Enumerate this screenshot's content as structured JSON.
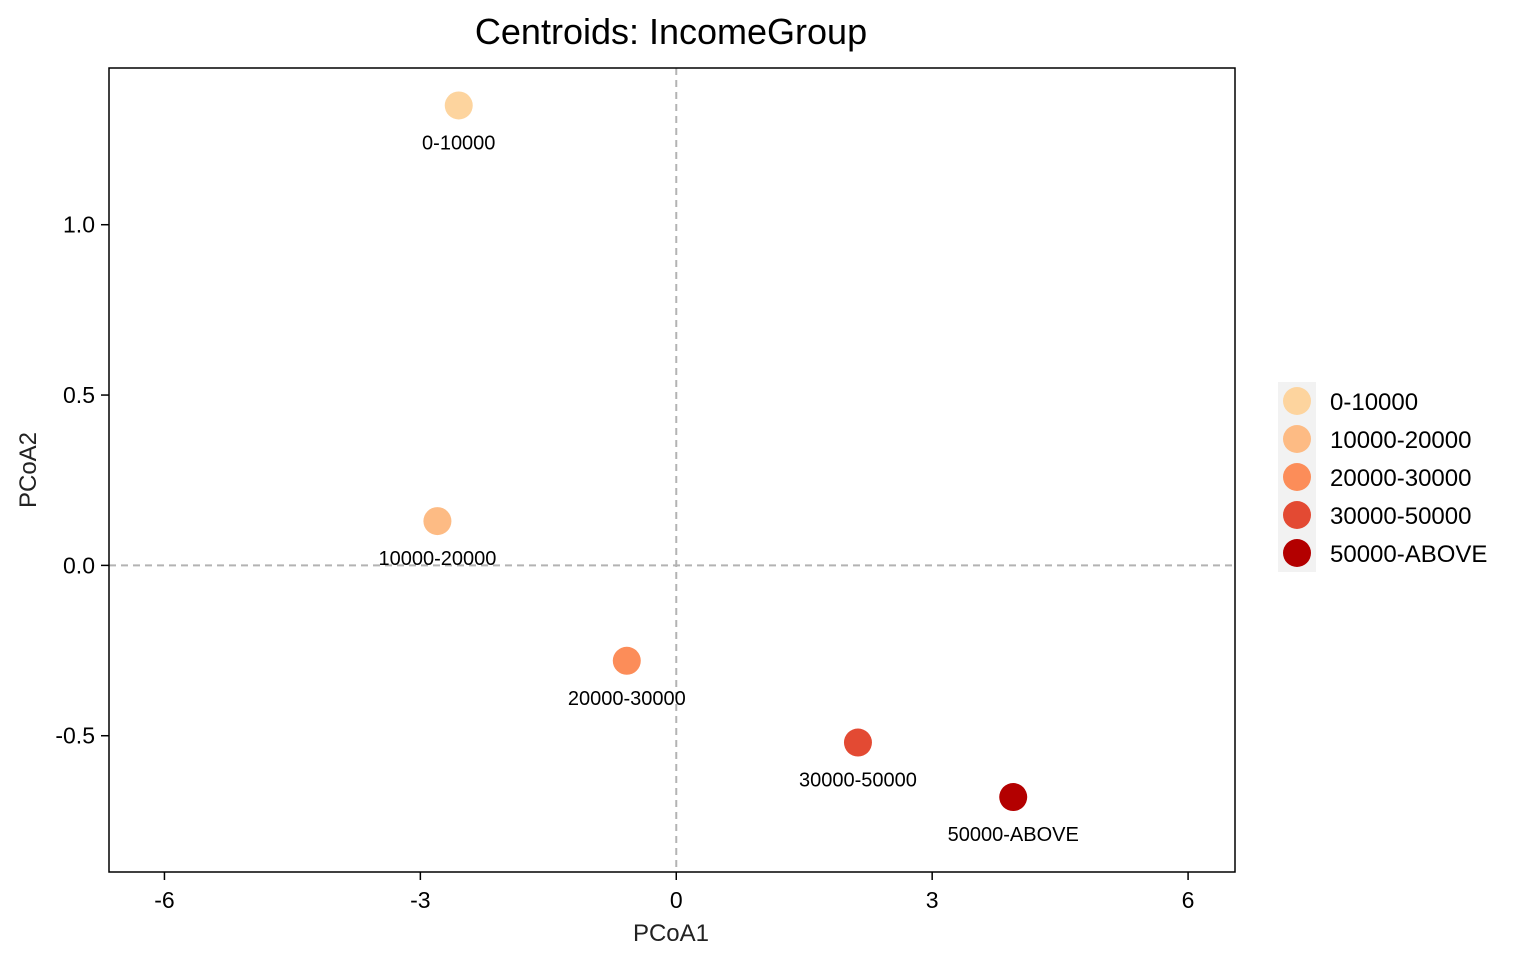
{
  "chart_data": {
    "type": "scatter",
    "title": "Centroids: IncomeGroup",
    "xlabel": "PCoA1",
    "ylabel": "PCoA2",
    "xlim": [
      -6.65,
      6.55
    ],
    "ylim": [
      -0.9,
      1.46
    ],
    "x_ticks": [
      -6,
      -3,
      0,
      3,
      6
    ],
    "x_tick_labels": [
      "-6",
      "-3",
      "0",
      "3",
      "6"
    ],
    "y_ticks": [
      -0.5,
      0.0,
      0.5,
      1.0
    ],
    "y_tick_labels": [
      "-0.5",
      "0.0",
      "0.5",
      "1.0"
    ],
    "reference_lines": {
      "x": 0,
      "y": 0,
      "style": "dashed",
      "color": "#b3b3b3"
    },
    "grid": false,
    "legend_position": "right",
    "points": [
      {
        "label": "0-10000",
        "x": -2.55,
        "y": 1.35,
        "color": "#fdd49e"
      },
      {
        "label": "10000-20000",
        "x": -2.8,
        "y": 0.13,
        "color": "#fdbb84"
      },
      {
        "label": "20000-30000",
        "x": -0.58,
        "y": -0.28,
        "color": "#fc8d59"
      },
      {
        "label": "30000-50000",
        "x": 2.13,
        "y": -0.52,
        "color": "#e34a33"
      },
      {
        "label": "50000-ABOVE",
        "x": 3.95,
        "y": -0.68,
        "color": "#b30000"
      }
    ]
  }
}
